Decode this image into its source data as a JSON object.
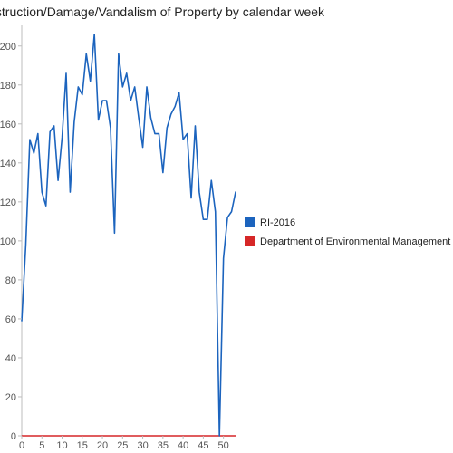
{
  "chart_data": {
    "type": "line",
    "title": "Destruction/Damage/Vandalism of Property by calendar week",
    "xlabel": "",
    "ylabel": "",
    "xlim": [
      0,
      53
    ],
    "ylim": [
      0,
      205
    ],
    "x_ticks": [
      0,
      5,
      10,
      15,
      20,
      25,
      30,
      35,
      40,
      45,
      50
    ],
    "y_ticks": [
      0,
      20,
      40,
      60,
      80,
      100,
      120,
      140,
      160,
      180,
      200
    ],
    "grid": false,
    "legend_position": "right",
    "series": [
      {
        "name": "RI-2016",
        "color": "#1c64be",
        "x": [
          0,
          1,
          2,
          3,
          4,
          5,
          6,
          7,
          8,
          9,
          10,
          11,
          12,
          13,
          14,
          15,
          16,
          17,
          18,
          19,
          20,
          21,
          22,
          23,
          24,
          25,
          26,
          27,
          28,
          29,
          30,
          31,
          32,
          33,
          34,
          35,
          36,
          37,
          38,
          39,
          40,
          41,
          42,
          43,
          44,
          45,
          46,
          47,
          48,
          49,
          50,
          51,
          52,
          53
        ],
        "values": [
          59,
          98,
          152,
          145,
          155,
          125,
          118,
          156,
          159,
          131,
          153,
          186,
          125,
          161,
          179,
          175,
          196,
          182,
          206,
          162,
          172,
          172,
          158,
          104,
          196,
          179,
          186,
          172,
          179,
          163,
          148,
          179,
          163,
          155,
          155,
          135,
          158,
          165,
          169,
          176,
          152,
          155,
          122,
          159,
          125,
          111,
          111,
          131,
          115,
          0,
          91,
          112,
          115,
          125
        ]
      },
      {
        "name": "Department of Environmental Management",
        "color": "#d62728",
        "x": [
          0,
          53
        ],
        "values": [
          0,
          0
        ]
      }
    ]
  }
}
